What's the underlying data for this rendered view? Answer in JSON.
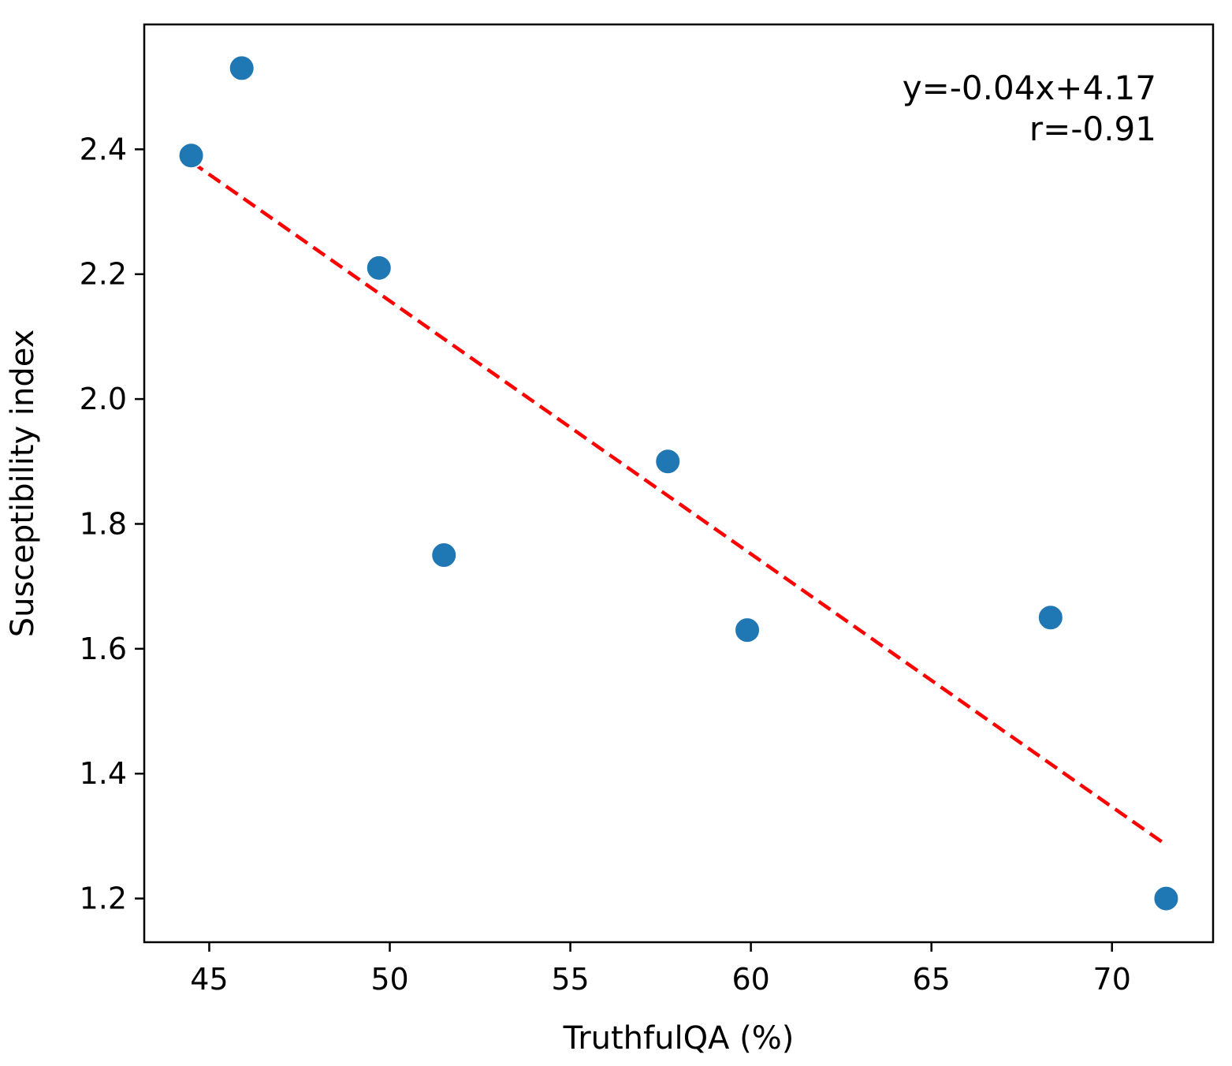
{
  "chart_data": {
    "type": "scatter",
    "title": "",
    "xlabel": "TruthfulQA (%)",
    "ylabel": "Susceptibility index",
    "xlim": [
      43.2,
      72.8
    ],
    "ylim": [
      1.13,
      2.6
    ],
    "xticks": [
      45,
      50,
      55,
      60,
      65,
      70
    ],
    "yticks": [
      1.2,
      1.4,
      1.6,
      1.8,
      2.0,
      2.2,
      2.4
    ],
    "xtick_labels": [
      "45",
      "50",
      "55",
      "60",
      "65",
      "70"
    ],
    "ytick_labels": [
      "1.2",
      "1.4",
      "1.6",
      "1.8",
      "2.0",
      "2.2",
      "2.4"
    ],
    "grid": false,
    "points": [
      {
        "x": 44.5,
        "y": 2.39
      },
      {
        "x": 45.9,
        "y": 2.53
      },
      {
        "x": 49.7,
        "y": 2.21
      },
      {
        "x": 51.5,
        "y": 1.75
      },
      {
        "x": 57.7,
        "y": 1.9
      },
      {
        "x": 59.9,
        "y": 1.63
      },
      {
        "x": 68.3,
        "y": 1.65
      },
      {
        "x": 71.5,
        "y": 1.2
      }
    ],
    "fit_line": {
      "x_start": 44.5,
      "y_start": 2.38,
      "x_end": 71.4,
      "y_end": 1.29
    },
    "annotation": {
      "equation": "y=-0.04x+4.17",
      "r": "r=-0.91",
      "placement": "top-right"
    },
    "colors": {
      "points": "#1f77b4",
      "fit_line": "#ff0000",
      "axes": "#000000"
    }
  }
}
